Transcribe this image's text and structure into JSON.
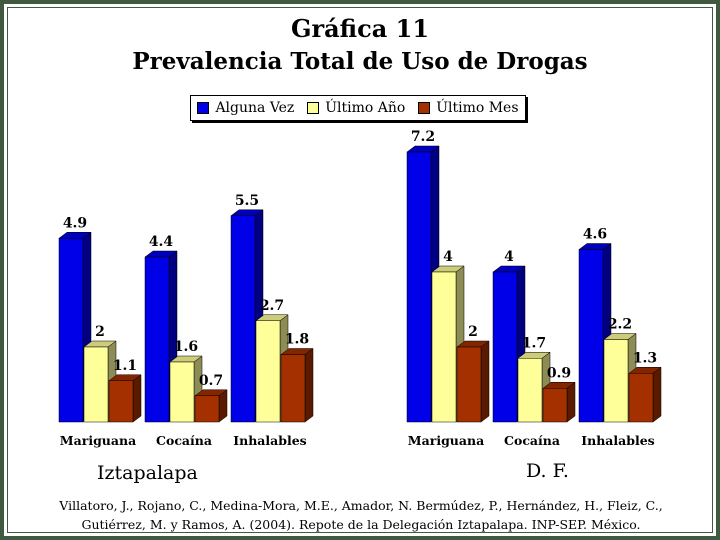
{
  "title_line1": "Gráfica 11",
  "title_line2": "Prevalencia Total de Uso de Drogas",
  "legend": [
    {
      "name": "Alguna Vez",
      "color": "#0000e8"
    },
    {
      "name": "Último Año",
      "color": "#ffff99"
    },
    {
      "name": "Último Mes",
      "color": "#a43000"
    }
  ],
  "citation": "Villatoro, J., Rojano, C., Medina-Mora, M.E., Amador, N. Bermúdez, P., Hernández, H., Fleiz, C., Gutiérrez, M. y Ramos, A. (2004). Repote de la Delegación Iztapalapa. INP-SEP. México.",
  "chart_data": [
    {
      "type": "bar",
      "group_label": "Iztapalapa",
      "categories": [
        "Mariguana",
        "Cocaína",
        "Inhalables"
      ],
      "series": [
        {
          "name": "Alguna Vez",
          "values": [
            4.9,
            4.4,
            5.5
          ]
        },
        {
          "name": "Último Año",
          "values": [
            2,
            1.6,
            2.7
          ]
        },
        {
          "name": "Último Mes",
          "values": [
            1.1,
            0.7,
            1.8
          ]
        }
      ],
      "data_labels": [
        [
          "4.9",
          "4.4",
          "5.5"
        ],
        [
          "2",
          "1.6",
          "2.7"
        ],
        [
          "1.1",
          "0.7",
          "1.8"
        ]
      ],
      "ylim": [
        0,
        7.2
      ],
      "grid": false,
      "legend_position": "top"
    },
    {
      "type": "bar",
      "group_label": "D. F.",
      "categories": [
        "Mariguana",
        "Cocaína",
        "Inhalables"
      ],
      "series": [
        {
          "name": "Alguna Vez",
          "values": [
            7.2,
            4,
            4.6
          ]
        },
        {
          "name": "Último Año",
          "values": [
            4,
            1.7,
            2.2
          ]
        },
        {
          "name": "Último Mes",
          "values": [
            2,
            0.9,
            1.3
          ]
        }
      ],
      "data_labels": [
        [
          "7.2",
          "4",
          "4.6"
        ],
        [
          "4",
          "1.7",
          "2.2"
        ],
        [
          "2",
          "0.9",
          "1.3"
        ]
      ],
      "ylim": [
        0,
        7.2
      ],
      "grid": false,
      "legend_position": "top"
    }
  ]
}
